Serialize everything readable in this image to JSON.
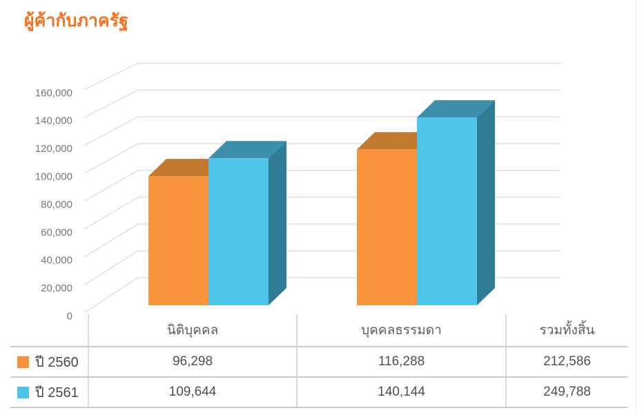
{
  "page": {
    "title": "ผู้ค้ากับภาครัฐ",
    "colors": {
      "title": "#F8701D",
      "grid": "#DBDBDB",
      "axis_text": "#777777",
      "table_border": "#C9C9C9",
      "table_text": "#4F4F4F"
    }
  },
  "chart_data": {
    "type": "bar",
    "style": "3d-clustered-column",
    "title": "ผู้ค้ากับภาครัฐ",
    "categories": [
      "นิติบุคคล",
      "บุคคลธรรมดา"
    ],
    "series": [
      {
        "name": "ปี 2560",
        "color": "#F7943C",
        "color_top": "#C27A2E",
        "color_side": "#B06E29",
        "values": [
          96298,
          116288
        ],
        "total": 212586
      },
      {
        "name": "ปี 2561",
        "color": "#4DC4E8",
        "color_top": "#3C90AC",
        "color_side": "#2E7C95",
        "values": [
          109644,
          140144
        ],
        "total": 249788
      }
    ],
    "ylim": [
      0,
      160000
    ],
    "ytick_step": 20000,
    "ytick_labels": [
      "0",
      "20,000",
      "40,000",
      "60,000",
      "80,000",
      "100,000",
      "120,000",
      "140,000",
      "160,000"
    ],
    "grid": true,
    "legend_position": "table-below"
  },
  "table": {
    "columns": [
      "นิติบุคคล",
      "บุคคลธรรมดา",
      "รวมทั้งสิ้น"
    ],
    "rows": [
      {
        "label": "ปี 2560",
        "swatch": "#F7923D",
        "values": [
          "96,298",
          "116,288",
          "212,586"
        ]
      },
      {
        "label": "ปี 2561",
        "swatch": "#4DC3E8",
        "values": [
          "109,644",
          "140,144",
          "249,788"
        ]
      }
    ]
  }
}
